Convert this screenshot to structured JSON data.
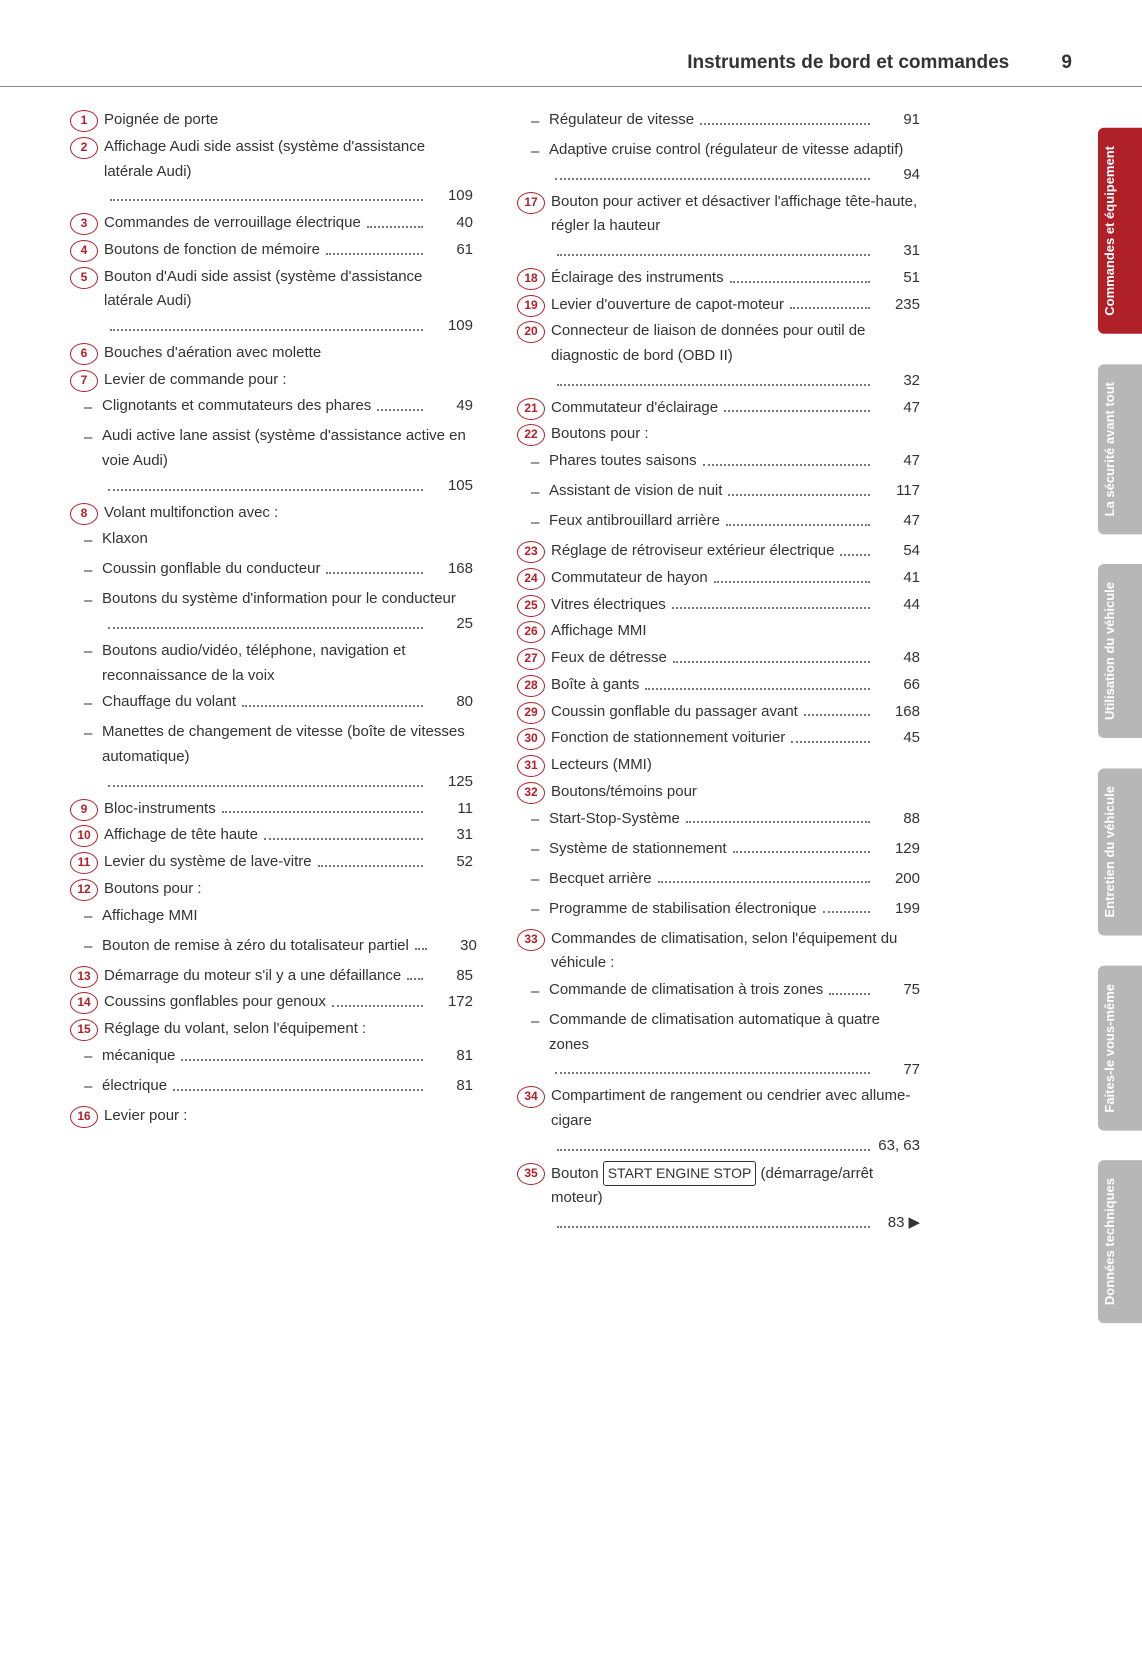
{
  "header": {
    "title": "Instruments de bord et commandes",
    "page": "9"
  },
  "colors": {
    "accent": "#b02028",
    "text": "#333333",
    "tab_inactive": "#b7b7b7"
  },
  "tabs": [
    {
      "label": "Commandes et équipement",
      "background": "#b02028",
      "active": true
    },
    {
      "label": "La sécurité avant tout",
      "background": "#b7b7b7"
    },
    {
      "label": "Utilisation du véhicule",
      "background": "#b7b7b7"
    },
    {
      "label": "Entretien du véhicule",
      "background": "#b7b7b7"
    },
    {
      "label": "Faites-le vous-même",
      "background": "#b7b7b7"
    },
    {
      "label": "Données techniques",
      "background": "#b7b7b7"
    }
  ],
  "left": [
    {
      "num": "1",
      "text": "Poignée de porte"
    },
    {
      "num": "2",
      "text": "Affichage Audi side assist (système d'assistance latérale Audi)",
      "page": "109"
    },
    {
      "num": "3",
      "text": "Commandes de verrouillage électrique",
      "page": "40"
    },
    {
      "num": "4",
      "text": "Boutons de fonction de mémoire",
      "page": "61"
    },
    {
      "num": "5",
      "text": "Bouton d'Audi side assist (système d'assistance latérale Audi)",
      "page": "109"
    },
    {
      "num": "6",
      "text": "Bouches d'aération avec molette"
    },
    {
      "num": "7",
      "text": "Levier de commande pour :"
    },
    {
      "dash": true,
      "text": "Clignotants et commutateurs des phares",
      "page": "49"
    },
    {
      "dash": true,
      "text": "Audi active lane assist (système d'assistance active en voie Audi)",
      "page": "105"
    },
    {
      "num": "8",
      "text": "Volant multifonction avec :"
    },
    {
      "dash": true,
      "text": "Klaxon"
    },
    {
      "dash": true,
      "text": "Coussin gonflable du conducteur",
      "page": "168"
    },
    {
      "dash": true,
      "text": "Boutons du système d'information pour le conducteur",
      "page": "25"
    },
    {
      "dash": true,
      "text": "Boutons audio/vidéo, téléphone, navigation et reconnaissance de la voix"
    },
    {
      "dash": true,
      "text": "Chauffage du volant",
      "page": "80"
    },
    {
      "dash": true,
      "text": "Manettes de changement de vitesse (boîte de vitesses automatique)",
      "page": "125"
    },
    {
      "num": "9",
      "text": "Bloc-instruments",
      "page": "11"
    },
    {
      "num": "10",
      "text": "Affichage de tête haute",
      "page": "31"
    },
    {
      "num": "11",
      "text": "Levier du système de lave-vitre",
      "page": "52"
    },
    {
      "num": "12",
      "text": "Boutons pour :"
    },
    {
      "dash": true,
      "text": "Affichage MMI"
    },
    {
      "dash": true,
      "text": "Bouton de remise à zéro du totalisateur partiel",
      "page": "30"
    },
    {
      "num": "13",
      "text": "Démarrage du moteur s'il y a une défaillance",
      "page": "85"
    },
    {
      "num": "14",
      "text": "Coussins gonflables pour genoux",
      "page": "172"
    },
    {
      "num": "15",
      "text": "Réglage du volant, selon l'équipement :"
    },
    {
      "dash": true,
      "text": "mécanique",
      "page": "81"
    },
    {
      "dash": true,
      "text": "électrique",
      "page": "81"
    },
    {
      "num": "16",
      "text": "Levier pour :"
    }
  ],
  "right": [
    {
      "dash": true,
      "text": "Régulateur de vitesse",
      "page": "91"
    },
    {
      "dash": true,
      "text": "Adaptive cruise control (régulateur de vitesse adaptif)",
      "page": "94"
    },
    {
      "num": "17",
      "text": "Bouton pour activer et désactiver l'affichage tête-haute, régler la hauteur",
      "page": "31"
    },
    {
      "num": "18",
      "text": "Éclairage des instruments",
      "page": "51"
    },
    {
      "num": "19",
      "text": "Levier d'ouverture de capot-moteur",
      "page": "235"
    },
    {
      "num": "20",
      "text": "Connecteur de liaison de données pour outil de diagnostic de bord (OBD II)",
      "page": "32"
    },
    {
      "num": "21",
      "text": "Commutateur d'éclairage",
      "page": "47"
    },
    {
      "num": "22",
      "text": "Boutons pour :"
    },
    {
      "dash": true,
      "text": "Phares toutes saisons",
      "page": "47"
    },
    {
      "dash": true,
      "text": "Assistant de vision de nuit",
      "page": "117"
    },
    {
      "dash": true,
      "text": "Feux antibrouillard arrière",
      "page": "47"
    },
    {
      "num": "23",
      "text": "Réglage de rétroviseur extérieur électrique",
      "page": "54"
    },
    {
      "num": "24",
      "text": "Commutateur de hayon",
      "page": "41"
    },
    {
      "num": "25",
      "text": "Vitres électriques",
      "page": "44"
    },
    {
      "num": "26",
      "text": "Affichage MMI"
    },
    {
      "num": "27",
      "text": "Feux de détresse",
      "page": "48"
    },
    {
      "num": "28",
      "text": "Boîte à gants",
      "page": "66"
    },
    {
      "num": "29",
      "text": "Coussin gonflable du passager avant",
      "page": "168"
    },
    {
      "num": "30",
      "text": "Fonction de stationnement voiturier",
      "page": "45"
    },
    {
      "num": "31",
      "text": "Lecteurs (MMI)"
    },
    {
      "num": "32",
      "text": "Boutons/témoins pour"
    },
    {
      "dash": true,
      "text": "Start-Stop-Système",
      "page": "88"
    },
    {
      "dash": true,
      "text": "Système de stationnement",
      "page": "129"
    },
    {
      "dash": true,
      "text": "Becquet arrière",
      "page": "200"
    },
    {
      "dash": true,
      "text": "Programme de stabilisation électronique",
      "page": "199"
    },
    {
      "num": "33",
      "text": "Commandes de climatisation, selon l'équipement du véhicule :"
    },
    {
      "dash": true,
      "text": "Commande de climatisation à trois zones",
      "page": "75"
    },
    {
      "dash": true,
      "text": "Commande de climatisation automatique à quatre zones",
      "page": "77"
    },
    {
      "num": "34",
      "text": "Compartiment de rangement ou cendrier avec allume-cigare",
      "page": "63, 63"
    },
    {
      "num": "35",
      "boxed": "START ENGINE STOP",
      "prefix": "Bouton ",
      "suffix": " (démarrage/arrêt moteur)",
      "page": "83",
      "continue": true
    }
  ]
}
